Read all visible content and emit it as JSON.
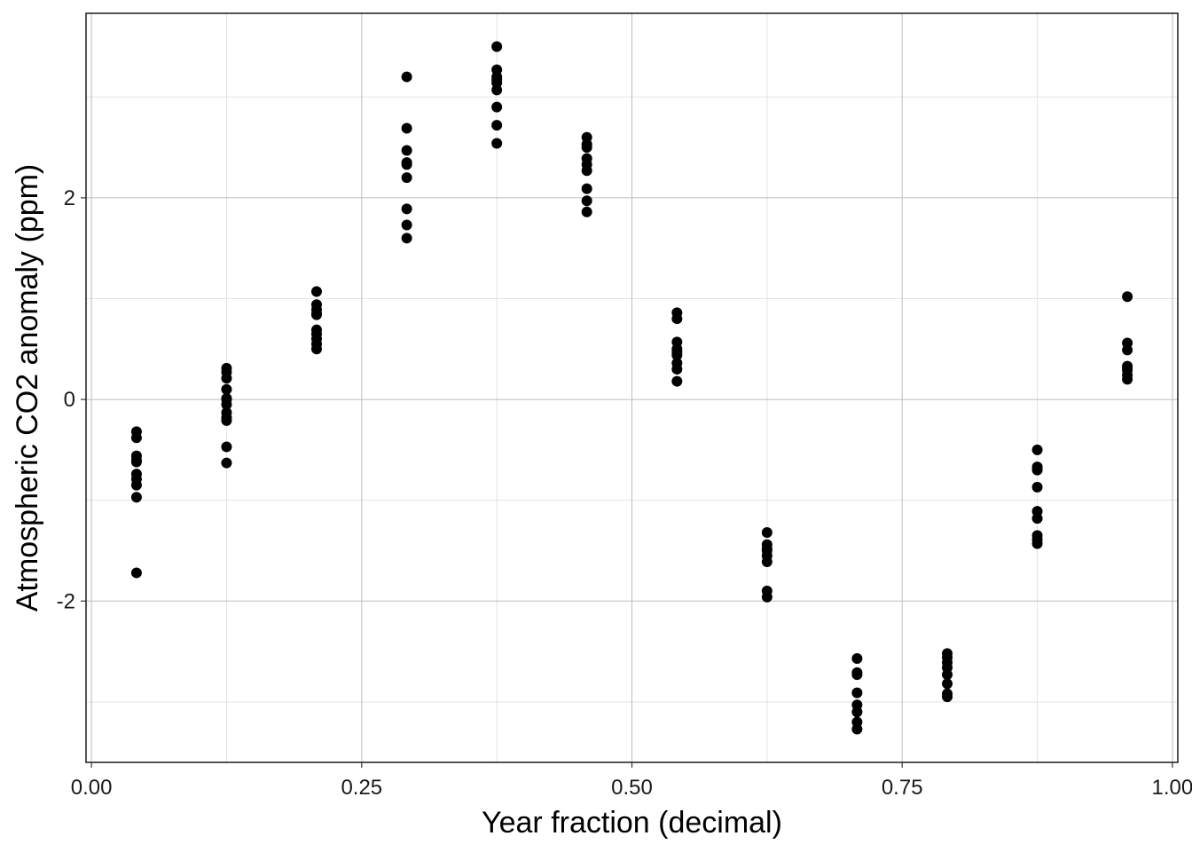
{
  "chart_data": {
    "type": "scatter",
    "title": "",
    "xlabel": "Year fraction (decimal)",
    "ylabel": "Atmospheric CO2 anomaly (ppm)",
    "xlim": [
      -0.005,
      1.005
    ],
    "ylim": [
      -3.6,
      3.83
    ],
    "x_ticks": [
      0.0,
      0.25,
      0.5,
      0.75,
      1.0
    ],
    "x_tick_labels": [
      "0.00",
      "0.25",
      "0.50",
      "0.75",
      "1.00"
    ],
    "y_ticks": [
      -2,
      0,
      2
    ],
    "y_tick_labels": [
      "-2",
      "0",
      "2"
    ],
    "grid": true,
    "point_color": "#000000",
    "series": [
      {
        "x": [
          0.0417,
          0.0417,
          0.0417,
          0.0417,
          0.0417,
          0.0417,
          0.0417,
          0.0417,
          0.0417,
          0.0417,
          0.125,
          0.125,
          0.125,
          0.125,
          0.125,
          0.125,
          0.125,
          0.125,
          0.125,
          0.125,
          0.125,
          0.125,
          0.2083,
          0.2083,
          0.2083,
          0.2083,
          0.2083,
          0.2083,
          0.2083,
          0.2083,
          0.2083,
          0.2083,
          0.2917,
          0.2917,
          0.2917,
          0.2917,
          0.2917,
          0.2917,
          0.2917,
          0.2917,
          0.2917,
          0.375,
          0.375,
          0.375,
          0.375,
          0.375,
          0.375,
          0.375,
          0.375,
          0.375,
          0.4583,
          0.4583,
          0.4583,
          0.4583,
          0.4583,
          0.4583,
          0.4583,
          0.4583,
          0.4583,
          0.5417,
          0.5417,
          0.5417,
          0.5417,
          0.5417,
          0.5417,
          0.5417,
          0.5417,
          0.5417,
          0.625,
          0.625,
          0.625,
          0.625,
          0.625,
          0.625,
          0.625,
          0.625,
          0.7083,
          0.7083,
          0.7083,
          0.7083,
          0.7083,
          0.7083,
          0.7083,
          0.7083,
          0.7917,
          0.7917,
          0.7917,
          0.7917,
          0.7917,
          0.7917,
          0.7917,
          0.7917,
          0.875,
          0.875,
          0.875,
          0.875,
          0.875,
          0.875,
          0.875,
          0.875,
          0.875,
          0.9583,
          0.9583,
          0.9583,
          0.9583,
          0.9583,
          0.9583,
          0.9583,
          0.9583
        ],
        "y": [
          -0.32,
          -0.38,
          -0.56,
          -0.62,
          -0.74,
          -0.79,
          -0.85,
          -0.97,
          -1.72,
          -0.6,
          0.31,
          0.27,
          0.21,
          0.1,
          0.0,
          -0.05,
          -0.13,
          -0.18,
          -0.21,
          -0.47,
          -0.63,
          0.01,
          1.07,
          0.94,
          0.89,
          0.84,
          0.69,
          0.65,
          0.55,
          0.5,
          0.85,
          0.6,
          3.2,
          2.69,
          2.47,
          2.33,
          2.2,
          1.89,
          1.73,
          1.6,
          2.35,
          3.5,
          3.27,
          3.2,
          3.14,
          3.07,
          2.9,
          2.72,
          2.54,
          3.17,
          2.6,
          2.53,
          2.39,
          2.33,
          2.27,
          2.09,
          1.97,
          1.86,
          2.5,
          0.86,
          0.8,
          0.57,
          0.5,
          0.44,
          0.36,
          0.3,
          0.18,
          0.47,
          -1.32,
          -1.44,
          -1.5,
          -1.55,
          -1.61,
          -1.9,
          -1.96,
          -1.48,
          -2.57,
          -2.71,
          -2.73,
          -2.91,
          -3.03,
          -3.1,
          -3.2,
          -3.27,
          -2.52,
          -2.56,
          -2.61,
          -2.66,
          -2.73,
          -2.82,
          -2.92,
          -2.95,
          -0.5,
          -0.67,
          -0.7,
          -0.87,
          -1.11,
          -1.18,
          -1.35,
          -1.39,
          -1.43,
          1.02,
          0.56,
          0.49,
          0.33,
          0.29,
          0.24,
          0.2,
          0.31
        ]
      }
    ]
  }
}
